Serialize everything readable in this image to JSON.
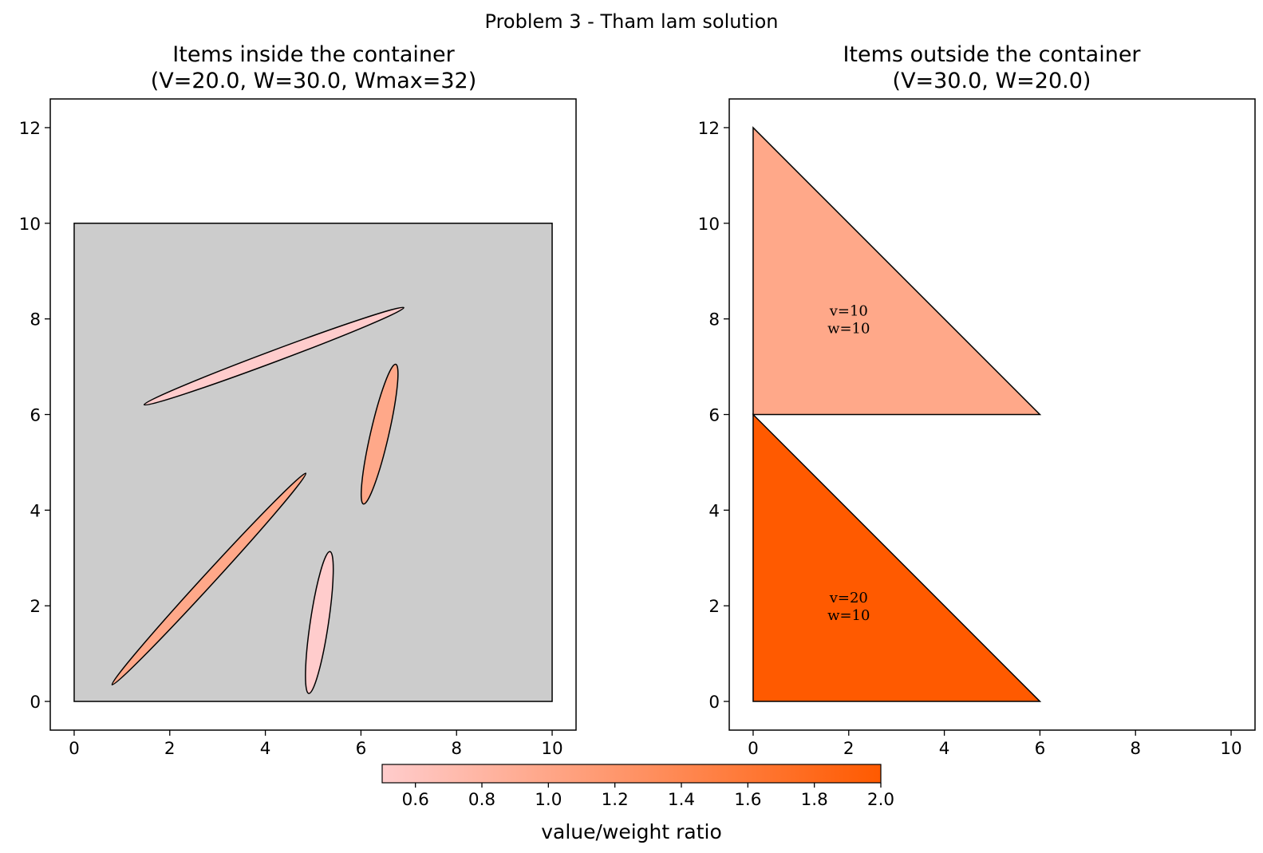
{
  "figure": {
    "suptitle": "Problem 3 - Tham lam solution"
  },
  "chart_data": [
    {
      "type": "scatter",
      "panel": "left",
      "title_line1": "Items inside the container",
      "title_line2": "(V=20.0, W=30.0, Wmax=32)",
      "xlim": [
        -0.5,
        10.5
      ],
      "ylim": [
        -0.6,
        12.6
      ],
      "xticks": [
        0,
        2,
        4,
        6,
        8,
        10
      ],
      "yticks": [
        0,
        2,
        4,
        6,
        8,
        10,
        12
      ],
      "grid": false,
      "container": {
        "x": [
          0,
          10
        ],
        "y": [
          0,
          10
        ],
        "color": "#cccccc"
      },
      "items": [
        {
          "shape": "ellipse",
          "cx": 4.18,
          "cy": 7.22,
          "half_length": 2.9,
          "half_width": 0.12,
          "angle_deg": 20.5,
          "ratio": 0.5,
          "color": "#ffcccc"
        },
        {
          "shape": "ellipse",
          "cx": 6.39,
          "cy": 5.59,
          "half_length": 1.5,
          "half_width": 0.19,
          "angle_deg": 77,
          "ratio": 1.0,
          "color": "#ffa889"
        },
        {
          "shape": "ellipse",
          "cx": 2.82,
          "cy": 2.56,
          "half_length": 3.0,
          "half_width": 0.12,
          "angle_deg": 47.5,
          "ratio": 1.0,
          "color": "#ffa889"
        },
        {
          "shape": "ellipse",
          "cx": 5.13,
          "cy": 1.65,
          "half_length": 1.5,
          "half_width": 0.19,
          "angle_deg": 81.5,
          "ratio": 0.5,
          "color": "#ffcccc"
        }
      ]
    },
    {
      "type": "scatter",
      "panel": "right",
      "title_line1": "Items outside the container",
      "title_line2": "(V=30.0, W=20.0)",
      "xlim": [
        -0.5,
        10.5
      ],
      "ylim": [
        -0.6,
        12.6
      ],
      "xticks": [
        0,
        2,
        4,
        6,
        8,
        10
      ],
      "yticks": [
        0,
        2,
        4,
        6,
        8,
        10,
        12
      ],
      "grid": false,
      "items": [
        {
          "shape": "triangle",
          "points": [
            [
              0,
              6
            ],
            [
              6,
              6
            ],
            [
              0,
              12
            ]
          ],
          "value": 10,
          "weight": 10,
          "ratio": 1.0,
          "color": "#ffa889",
          "label_v": "v=10",
          "label_w": "w=10",
          "label_at": [
            2,
            8
          ]
        },
        {
          "shape": "triangle",
          "points": [
            [
              0,
              0
            ],
            [
              6,
              0
            ],
            [
              0,
              6
            ]
          ],
          "value": 20,
          "weight": 10,
          "ratio": 2.0,
          "color": "#ff5a00",
          "label_v": "v=20",
          "label_w": "w=10",
          "label_at": [
            2,
            2
          ]
        }
      ]
    }
  ],
  "colorbar": {
    "label": "value/weight ratio",
    "range": [
      0.5,
      2.0
    ],
    "ticks": [
      "0.6",
      "0.8",
      "1.0",
      "1.2",
      "1.4",
      "1.6",
      "1.8",
      "2.0"
    ],
    "tick_values": [
      0.6,
      0.8,
      1.0,
      1.2,
      1.4,
      1.6,
      1.8,
      2.0
    ],
    "color_low": "#ffcccc",
    "color_high": "#ff5a00"
  }
}
